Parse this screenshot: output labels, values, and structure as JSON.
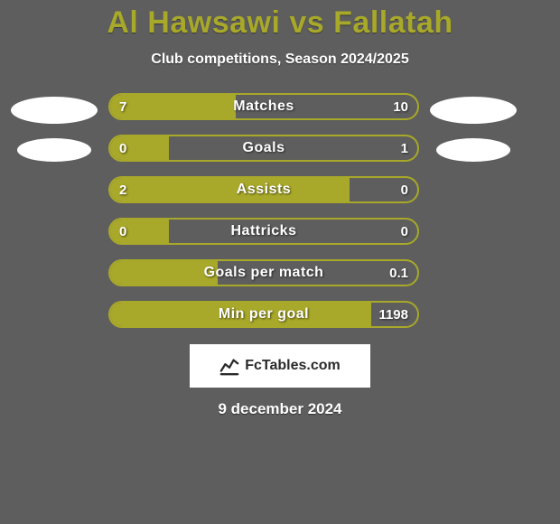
{
  "title": "Al Hawsawi vs Fallatah",
  "subtitle": "Club competitions, Season 2024/2025",
  "date": "9 december 2024",
  "badge_text": "FcTables.com",
  "colors": {
    "background": "#5e5e5e",
    "accent": "#a8a82a",
    "bar_border": "#a8a82a",
    "bar_fill": "#a8a82a",
    "text_white": "#ffffff"
  },
  "bars": [
    {
      "label": "Matches",
      "left": "7",
      "right": "10",
      "fill_pct": 41
    },
    {
      "label": "Goals",
      "left": "0",
      "right": "1",
      "fill_pct": 19
    },
    {
      "label": "Assists",
      "left": "2",
      "right": "0",
      "fill_pct": 78
    },
    {
      "label": "Hattricks",
      "left": "0",
      "right": "0",
      "fill_pct": 19
    },
    {
      "label": "Goals per match",
      "left": "",
      "right": "0.1",
      "fill_pct": 35
    },
    {
      "label": "Min per goal",
      "left": "",
      "right": "1198",
      "fill_pct": 85
    }
  ]
}
